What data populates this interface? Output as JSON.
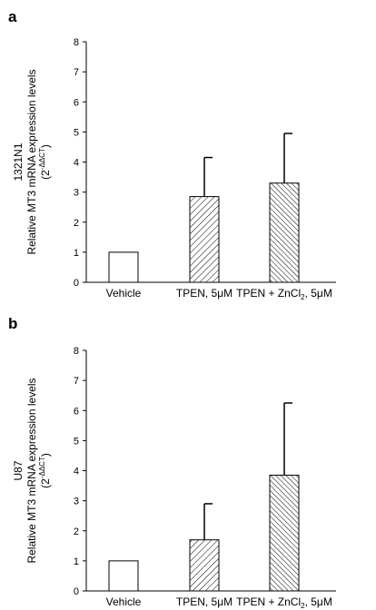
{
  "chart_data": [
    {
      "type": "bar",
      "panel": "a",
      "ylabel_line1": "1321N1",
      "ylabel_line2": "Relative MT3 mRNA expression levels",
      "ylabel_line3_base": "(2",
      "ylabel_line3_sup": "-ΔΔCT",
      "ylabel_line3_end": ")",
      "ylim": [
        0,
        8
      ],
      "yticks": [
        "0",
        "1",
        "2",
        "3",
        "4",
        "5",
        "6",
        "7",
        "8"
      ],
      "categories": [
        "Vehicle",
        "TPEN, 5μM",
        "TPEN + ZnCl2, 5μM"
      ],
      "category_labels": [
        {
          "pre": "Vehicle",
          "sub": "",
          "post": ""
        },
        {
          "pre": "TPEN, 5μM",
          "sub": "",
          "post": ""
        },
        {
          "pre": "TPEN + ZnCl",
          "sub": "2",
          "post": ", 5μM"
        }
      ],
      "values": [
        1.0,
        2.85,
        3.3
      ],
      "error_upper": [
        0,
        1.3,
        1.65
      ],
      "fills": [
        "none",
        "hatch-sparse",
        "hatch-dense"
      ]
    },
    {
      "type": "bar",
      "panel": "b",
      "ylabel_line1": "U87",
      "ylabel_line2": "Relative MT3 mRNA expression levels",
      "ylabel_line3_base": "(2",
      "ylabel_line3_sup": "-ΔΔCT",
      "ylabel_line3_end": ")",
      "ylim": [
        0,
        8
      ],
      "yticks": [
        "0",
        "1",
        "2",
        "3",
        "4",
        "5",
        "6",
        "7",
        "8"
      ],
      "categories": [
        "Vehicle",
        "TPEN, 5μM",
        "TPEN + ZnCl2, 5μM"
      ],
      "category_labels": [
        {
          "pre": "Vehicle",
          "sub": "",
          "post": ""
        },
        {
          "pre": "TPEN, 5μM",
          "sub": "",
          "post": ""
        },
        {
          "pre": "TPEN + ZnCl",
          "sub": "2",
          "post": ", 5μM"
        }
      ],
      "values": [
        1.0,
        1.7,
        3.85
      ],
      "error_upper": [
        0,
        1.2,
        2.4
      ],
      "fills": [
        "none",
        "hatch-sparse",
        "hatch-dense"
      ]
    }
  ]
}
